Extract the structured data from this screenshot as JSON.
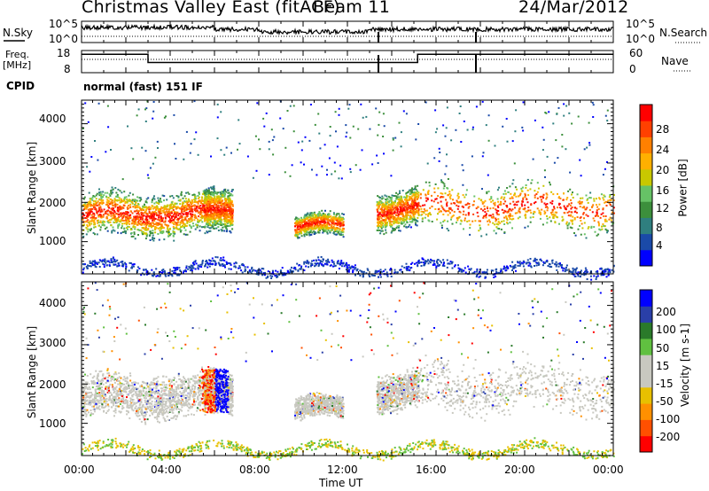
{
  "header": {
    "station": "Christmas Valley East (fitACF)",
    "beam": "Beam 11",
    "date": "24/Mar/2012"
  },
  "labels": {
    "nsky": "N.Sky",
    "nsearch": "N.Search",
    "freq1": "Freq.",
    "freq2": "[MHz]",
    "nave": "Nave",
    "cpid": "CPID",
    "cpid_value": "normal (fast) 151 IF",
    "ylabel": "Slant Range [km]",
    "xlabel": "Time UT"
  },
  "colors": {
    "power_scale": [
      "#0000ff",
      "#1a4aa8",
      "#2f7f7f",
      "#3c8f3c",
      "#66c266",
      "#c8c800",
      "#ffb000",
      "#ff8000",
      "#ff4000",
      "#ff0000"
    ],
    "velocity_scale": [
      "#0000ff",
      "#2a3fa8",
      "#2a7a2a",
      "#60c040",
      "#c8c8c0",
      "#c8c8c0",
      "#e8c000",
      "#ff9000",
      "#ff5000",
      "#ff0000"
    ]
  },
  "chart_data": [
    {
      "type": "line",
      "panel": "noise",
      "left_ticks": [
        "10^5",
        "10^0"
      ],
      "right_ticks": [
        "10^5",
        "10^0"
      ],
      "series": [
        {
          "name": "N.Sky",
          "style": "solid"
        },
        {
          "name": "N.Search",
          "style": "dotted"
        }
      ]
    },
    {
      "type": "line",
      "panel": "frequency",
      "left_ticks": [
        "18",
        "8"
      ],
      "right_ticks": [
        "60",
        "0"
      ],
      "series": [
        {
          "name": "Freq.",
          "style": "solid",
          "x": [
            "00:00",
            "03:00",
            "03:00",
            "15:10",
            "15:10",
            "24:00"
          ],
          "y": [
            16,
            16,
            11.5,
            11.5,
            16,
            16
          ]
        },
        {
          "name": "Nave",
          "style": "dotted"
        }
      ]
    },
    {
      "type": "heatmap",
      "panel": "power",
      "xlabel": "Time UT",
      "ylabel": "Slant Range [km]",
      "colorbar_label": "Power [dB]",
      "colorbar_ticks": [
        "28",
        "24",
        "20",
        "16",
        "12",
        "8",
        "4"
      ],
      "yticks": [
        "4000",
        "3000",
        "2000",
        "1000"
      ],
      "ylim": [
        180,
        4600
      ],
      "xticks": [
        "00:00",
        "04:00",
        "08:00",
        "12:00",
        "16:00",
        "20:00",
        "00:00"
      ],
      "xlim": [
        0,
        24
      ],
      "blobs": [
        {
          "t0": 0.0,
          "t1": 3.0,
          "r0": 1050,
          "r1": 2300,
          "level": "high"
        },
        {
          "t0": 3.0,
          "t1": 5.8,
          "r0": 1150,
          "r1": 2400,
          "level": "high"
        },
        {
          "t0": 5.5,
          "t1": 6.8,
          "r0": 1100,
          "r1": 2300,
          "level": "high"
        },
        {
          "t0": 9.6,
          "t1": 11.8,
          "r0": 1050,
          "r1": 1700,
          "level": "high"
        },
        {
          "t0": 13.3,
          "t1": 15.2,
          "r0": 1300,
          "r1": 2400,
          "level": "high"
        },
        {
          "t0": 15.2,
          "t1": 24.0,
          "r0": 1200,
          "r1": 2600,
          "level": "high"
        },
        {
          "t0": 0.0,
          "t1": 24.0,
          "r0": 200,
          "r1": 500,
          "level": "low"
        }
      ]
    },
    {
      "type": "heatmap",
      "panel": "velocity",
      "xlabel": "Time UT",
      "ylabel": "Slant Range [km]",
      "colorbar_label": "Velocity [m s-1]",
      "colorbar_ticks": [
        "200",
        "100",
        "50",
        "15",
        "-15",
        "-50",
        "-100",
        "-200"
      ],
      "yticks": [
        "4000",
        "3000",
        "2000",
        "1000"
      ],
      "ylim": [
        180,
        4600
      ],
      "xticks": [
        "00:00",
        "04:00",
        "08:00",
        "12:00",
        "16:00",
        "20:00",
        "00:00"
      ],
      "xlim": [
        0,
        24
      ]
    }
  ]
}
